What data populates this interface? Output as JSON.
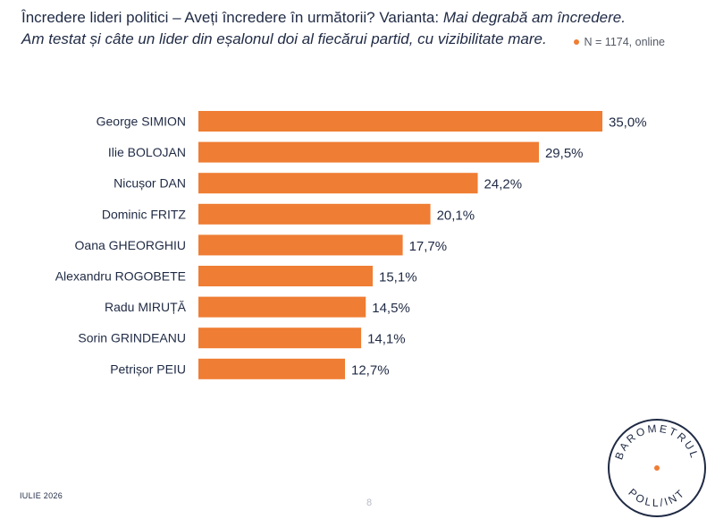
{
  "header": {
    "title_part1": "Încredere lideri politici – Aveți încredere în următorii? Varianta: ",
    "title_part1_em": "Mai degrabă am încredere.",
    "title_line2": "Am testat și câte un lider din eșalonul doi al fiecărui partid, cu vizibilitate mare.",
    "sample_note": "N = 1174, online"
  },
  "colors": {
    "bar": "#ef7d33",
    "text": "#1f2a44",
    "accent_dot": "#ef7d33"
  },
  "chart_data": {
    "type": "bar",
    "orientation": "horizontal",
    "categories": [
      "George SIMION",
      "Ilie BOLOJAN",
      "Nicușor DAN",
      "Dominic FRITZ",
      "Oana GHEORGHIU",
      "Alexandru ROGOBETE",
      "Radu MIRUȚĂ",
      "Sorin GRINDEANU",
      "Petrișor PEIU"
    ],
    "values": [
      35.0,
      29.5,
      24.2,
      20.1,
      17.7,
      15.1,
      14.5,
      14.1,
      12.7
    ],
    "value_labels": [
      "35,0%",
      "29,5%",
      "24,2%",
      "20,1%",
      "17,7%",
      "15,1%",
      "14,5%",
      "14,1%",
      "12,7%"
    ],
    "title": "",
    "xlabel": "",
    "ylabel": "",
    "xlim": [
      0,
      35.0
    ],
    "grid": false,
    "legend": "none"
  },
  "footer": {
    "date": "IULIE 2026",
    "page_number": "8"
  },
  "logo": {
    "top_text": "BAROMETRUL",
    "bottom_text": "POLL/INT"
  }
}
